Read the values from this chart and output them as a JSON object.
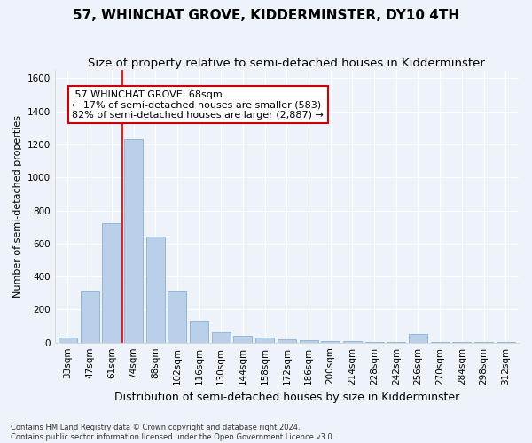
{
  "title": "57, WHINCHAT GROVE, KIDDERMINSTER, DY10 4TH",
  "subtitle": "Size of property relative to semi-detached houses in Kidderminster",
  "xlabel": "Distribution of semi-detached houses by size in Kidderminster",
  "ylabel": "Number of semi-detached properties",
  "footnote": "Contains HM Land Registry data © Crown copyright and database right 2024.\nContains public sector information licensed under the Open Government Licence v3.0.",
  "categories": [
    "33sqm",
    "47sqm",
    "61sqm",
    "74sqm",
    "88sqm",
    "102sqm",
    "116sqm",
    "130sqm",
    "144sqm",
    "158sqm",
    "172sqm",
    "186sqm",
    "200sqm",
    "214sqm",
    "228sqm",
    "242sqm",
    "256sqm",
    "270sqm",
    "284sqm",
    "298sqm",
    "312sqm"
  ],
  "values": [
    30,
    310,
    720,
    1230,
    640,
    310,
    130,
    60,
    40,
    30,
    20,
    15,
    10,
    8,
    2,
    2,
    50,
    2,
    2,
    2,
    5
  ],
  "bar_color": "#b8d0ea",
  "bar_edge_color": "#8ab0d4",
  "red_line_label": "57 WHINCHAT GROVE: 68sqm",
  "annotation_line1": "← 17% of semi-detached houses are smaller (583)",
  "annotation_line2": "82% of semi-detached houses are larger (2,887) →",
  "ylim": [
    0,
    1650
  ],
  "yticks": [
    0,
    200,
    400,
    600,
    800,
    1000,
    1200,
    1400,
    1600
  ],
  "background_color": "#eef2f9",
  "grid_color": "#ffffff",
  "title_fontsize": 11,
  "subtitle_fontsize": 9.5,
  "xlabel_fontsize": 9,
  "ylabel_fontsize": 8,
  "tick_fontsize": 7.5,
  "footnote_fontsize": 6,
  "annotation_fontsize": 8,
  "annotation_box_color": "#ffffff",
  "annotation_box_edge": "#cc0000",
  "red_line_x": 2.5
}
